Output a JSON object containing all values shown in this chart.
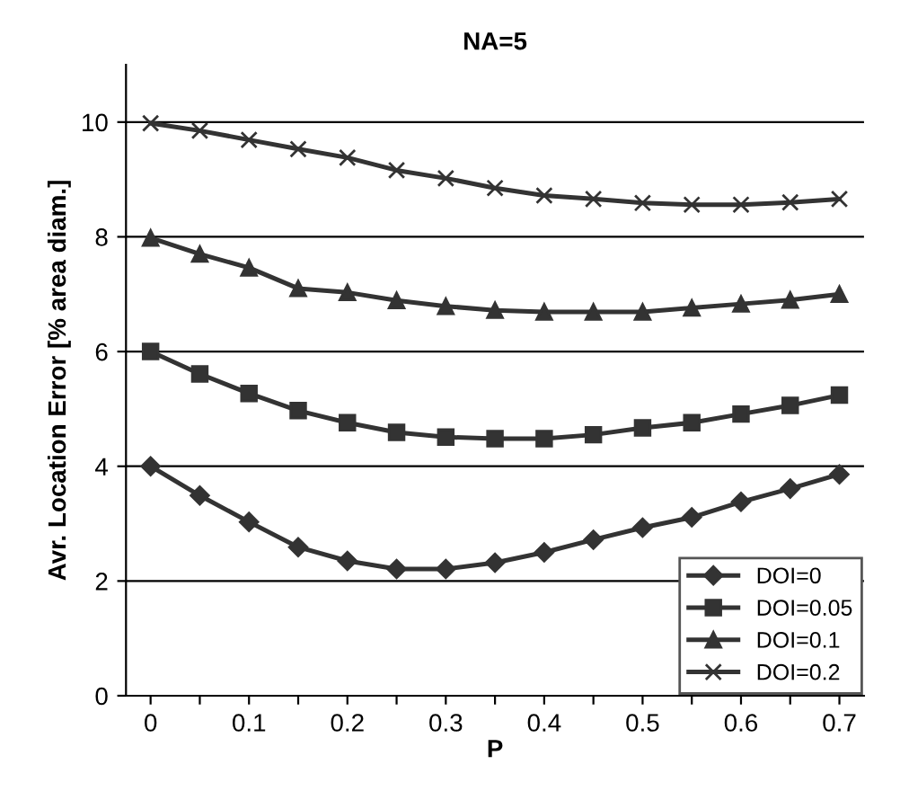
{
  "chart_data": {
    "type": "line",
    "title": "NA=5",
    "xlabel": "P",
    "ylabel": "Avr. Location Error [% area diam.]",
    "categories": [
      "0",
      null,
      "0.1",
      null,
      "0.2",
      null,
      "0.3",
      null,
      "0.4",
      null,
      "0.5",
      null,
      "0.6",
      null,
      "0.7"
    ],
    "ylim": [
      0,
      11
    ],
    "yticks": [
      0,
      2,
      4,
      6,
      8,
      10
    ],
    "grid": "y",
    "legend": "bottom right",
    "series": [
      {
        "name": "DOI=0",
        "color": "#333333",
        "marker": "diamond",
        "values": [
          4.0,
          3.49,
          3.03,
          2.59,
          2.35,
          2.21,
          2.21,
          2.32,
          2.5,
          2.72,
          2.93,
          3.11,
          3.38,
          3.61,
          3.86
        ]
      },
      {
        "name": "DOI=0.05",
        "color": "#333333",
        "marker": "square",
        "values": [
          6.0,
          5.61,
          5.27,
          4.97,
          4.76,
          4.59,
          4.51,
          4.48,
          4.48,
          4.55,
          4.67,
          4.76,
          4.91,
          5.06,
          5.24
        ]
      },
      {
        "name": "DOI=0.1",
        "color": "#333333",
        "marker": "triangle",
        "values": [
          7.98,
          7.7,
          7.46,
          7.1,
          7.03,
          6.89,
          6.79,
          6.72,
          6.69,
          6.69,
          6.69,
          6.76,
          6.83,
          6.9,
          7.0
        ]
      },
      {
        "name": "DOI=0.2",
        "color": "#333333",
        "marker": "cross",
        "values": [
          9.98,
          9.85,
          9.69,
          9.53,
          9.38,
          9.16,
          9.02,
          8.85,
          8.72,
          8.66,
          8.59,
          8.56,
          8.56,
          8.6,
          8.66
        ]
      }
    ]
  }
}
